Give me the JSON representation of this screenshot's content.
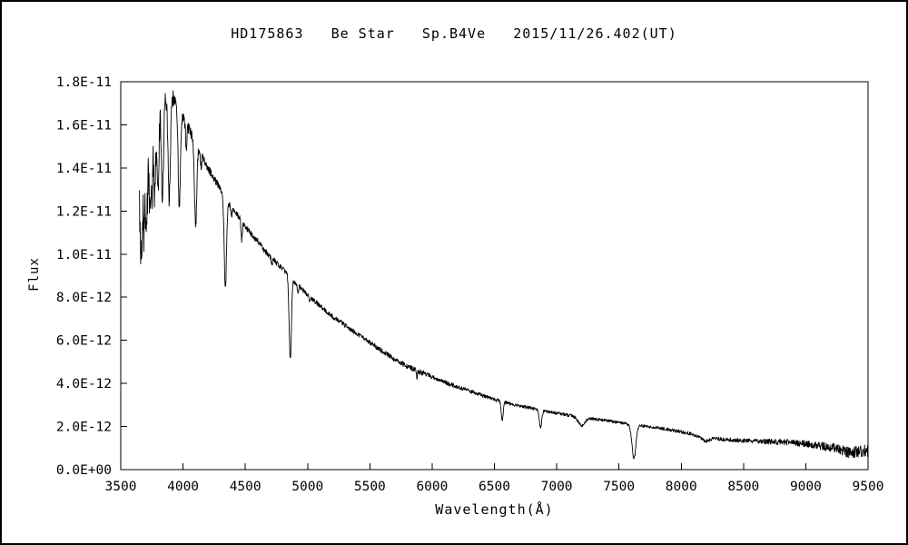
{
  "chart_data": {
    "type": "line",
    "title": "HD175863   Be Star   Sp.B4Ve   2015/11/26.402(UT)",
    "xlabel": "Wavelength(Å)",
    "ylabel": "Flux",
    "xlim": [
      3500,
      9500
    ],
    "ylim_units": [
      0,
      18
    ],
    "flux_unit": "1e-12 (labels shown in scientific notation)",
    "x_ticks": [
      3500,
      4000,
      4500,
      5000,
      5500,
      6000,
      6500,
      7000,
      7500,
      8000,
      8500,
      9000,
      9500
    ],
    "y_ticks": [
      {
        "value": 0,
        "label": "0.0E+00"
      },
      {
        "value": 2,
        "label": "2.0E-12"
      },
      {
        "value": 4,
        "label": "4.0E-12"
      },
      {
        "value": 6,
        "label": "6.0E-12"
      },
      {
        "value": 8,
        "label": "8.0E-12"
      },
      {
        "value": 10,
        "label": "1.0E-11"
      },
      {
        "value": 12,
        "label": "1.2E-11"
      },
      {
        "value": 14,
        "label": "1.4E-11"
      },
      {
        "value": 16,
        "label": "1.6E-11"
      },
      {
        "value": 18,
        "label": "1.8E-11"
      }
    ],
    "line_color": "#000000",
    "frame_color": "#000000",
    "background": "#ffffff",
    "grid": false,
    "legend": false,
    "x_range_data": [
      3650,
      9515
    ],
    "continuum_points": [
      [
        3650,
        12.8
      ],
      [
        3680,
        13.8
      ],
      [
        3710,
        14.8
      ],
      [
        3740,
        15.6
      ],
      [
        3770,
        16.1
      ],
      [
        3800,
        16.6
      ],
      [
        3830,
        16.9
      ],
      [
        3860,
        17.1
      ],
      [
        3890,
        17.3
      ],
      [
        3920,
        17.2
      ],
      [
        3950,
        16.9
      ],
      [
        3980,
        16.6
      ],
      [
        4010,
        16.3
      ],
      [
        4040,
        15.9
      ],
      [
        4070,
        15.5
      ],
      [
        4100,
        15.1
      ],
      [
        4150,
        14.6
      ],
      [
        4200,
        14.0
      ],
      [
        4250,
        13.5
      ],
      [
        4300,
        13.0
      ],
      [
        4350,
        12.5
      ],
      [
        4400,
        12.1
      ],
      [
        4450,
        11.7
      ],
      [
        4500,
        11.3
      ],
      [
        4550,
        10.9
      ],
      [
        4600,
        10.6
      ],
      [
        4650,
        10.2
      ],
      [
        4700,
        9.9
      ],
      [
        4750,
        9.6
      ],
      [
        4800,
        9.3
      ],
      [
        4850,
        9.0
      ],
      [
        4900,
        8.7
      ],
      [
        4950,
        8.4
      ],
      [
        5000,
        8.1
      ],
      [
        5100,
        7.6
      ],
      [
        5200,
        7.1
      ],
      [
        5300,
        6.7
      ],
      [
        5400,
        6.3
      ],
      [
        5500,
        5.9
      ],
      [
        5600,
        5.5
      ],
      [
        5700,
        5.1
      ],
      [
        5800,
        4.8
      ],
      [
        5900,
        4.55
      ],
      [
        6000,
        4.3
      ],
      [
        6100,
        4.05
      ],
      [
        6200,
        3.85
      ],
      [
        6300,
        3.65
      ],
      [
        6400,
        3.45
      ],
      [
        6500,
        3.25
      ],
      [
        6600,
        3.1
      ],
      [
        6700,
        2.95
      ],
      [
        6800,
        2.85
      ],
      [
        6900,
        2.72
      ],
      [
        7000,
        2.62
      ],
      [
        7100,
        2.52
      ],
      [
        7200,
        2.45
      ],
      [
        7300,
        2.35
      ],
      [
        7400,
        2.27
      ],
      [
        7500,
        2.18
      ],
      [
        7600,
        2.1
      ],
      [
        7700,
        2.02
      ],
      [
        7800,
        1.95
      ],
      [
        7900,
        1.86
      ],
      [
        8000,
        1.76
      ],
      [
        8100,
        1.62
      ],
      [
        8200,
        1.48
      ],
      [
        8300,
        1.42
      ],
      [
        8400,
        1.38
      ],
      [
        8500,
        1.35
      ],
      [
        8600,
        1.32
      ],
      [
        8700,
        1.3
      ],
      [
        8800,
        1.28
      ],
      [
        8900,
        1.25
      ],
      [
        9000,
        1.2
      ],
      [
        9100,
        1.12
      ],
      [
        9200,
        1.03
      ],
      [
        9300,
        0.97
      ],
      [
        9400,
        0.92
      ],
      [
        9500,
        0.88
      ]
    ],
    "absorption_lines": [
      [
        3660,
        2.0,
        5
      ],
      [
        3671,
        2.2,
        5
      ],
      [
        3683,
        2.4,
        5
      ],
      [
        3697,
        2.6,
        6
      ],
      [
        3712,
        2.8,
        6
      ],
      [
        3734,
        3.2,
        7
      ],
      [
        3750,
        2.9,
        6
      ],
      [
        3771,
        3.5,
        7
      ],
      [
        3798,
        3.8,
        8
      ],
      [
        3835,
        4.3,
        8
      ],
      [
        3889,
        4.8,
        9
      ],
      [
        3970,
        4.5,
        9
      ],
      [
        4026,
        1.2,
        5
      ],
      [
        4101,
        3.8,
        9
      ],
      [
        4144,
        0.6,
        5
      ],
      [
        4340,
        4.2,
        9
      ],
      [
        4388,
        0.5,
        5
      ],
      [
        4471,
        0.9,
        5
      ],
      [
        4713,
        0.3,
        5
      ],
      [
        4861,
        3.8,
        9
      ],
      [
        4922,
        0.4,
        5
      ],
      [
        5016,
        0.3,
        5
      ],
      [
        5876,
        0.35,
        5
      ],
      [
        6563,
        0.85,
        8
      ],
      [
        6870,
        0.8,
        10
      ],
      [
        7200,
        0.4,
        28
      ],
      [
        7620,
        1.55,
        16
      ],
      [
        8200,
        0.15,
        30
      ],
      [
        9350,
        0.15,
        50
      ]
    ],
    "noise_amplitude": [
      [
        3650,
        2.0
      ],
      [
        3700,
        1.3
      ],
      [
        3760,
        0.9
      ],
      [
        3820,
        0.6
      ],
      [
        3900,
        0.45
      ],
      [
        4000,
        0.3
      ],
      [
        4200,
        0.18
      ],
      [
        4600,
        0.13
      ],
      [
        5000,
        0.11
      ],
      [
        5500,
        0.1
      ],
      [
        5900,
        0.14
      ],
      [
        6000,
        0.1
      ],
      [
        6500,
        0.08
      ],
      [
        7000,
        0.07
      ],
      [
        7600,
        0.07
      ],
      [
        8000,
        0.08
      ],
      [
        8500,
        0.1
      ],
      [
        9000,
        0.15
      ],
      [
        9250,
        0.22
      ],
      [
        9500,
        0.3
      ]
    ]
  }
}
